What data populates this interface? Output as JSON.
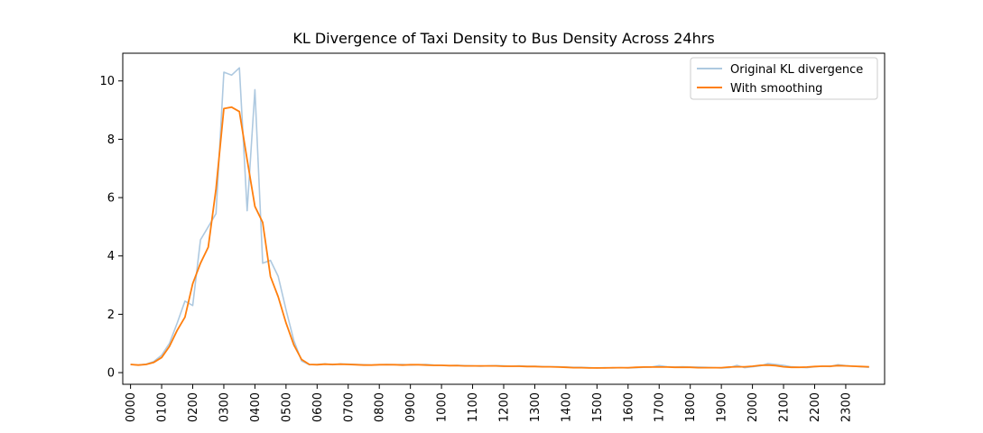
{
  "chart_data": {
    "type": "line",
    "title": "KL Divergence of Taxi Density to Bus Density Across 24hrs",
    "xlabel": "",
    "ylabel": "",
    "x_unit": "hour",
    "xlim": [
      -0.25,
      24.25
    ],
    "ylim": [
      -0.4,
      10.95
    ],
    "x_ticks": [
      0,
      1,
      2,
      3,
      4,
      5,
      6,
      7,
      8,
      9,
      10,
      11,
      12,
      13,
      14,
      15,
      16,
      17,
      18,
      19,
      20,
      21,
      22,
      23
    ],
    "x_tick_labels": [
      "0000",
      "0100",
      "0200",
      "0300",
      "0400",
      "0500",
      "0600",
      "0700",
      "0800",
      "0900",
      "1000",
      "1100",
      "1200",
      "1300",
      "1400",
      "1500",
      "1600",
      "1700",
      "1800",
      "1900",
      "2000",
      "2100",
      "2200",
      "2300"
    ],
    "y_ticks": [
      0,
      2,
      4,
      6,
      8,
      10
    ],
    "y_tick_labels": [
      "0",
      "2",
      "4",
      "6",
      "8",
      "10"
    ],
    "grid": false,
    "legend_position": "top-right",
    "x": [
      0,
      0.25,
      0.5,
      0.75,
      1,
      1.25,
      1.5,
      1.75,
      2,
      2.25,
      2.5,
      2.75,
      3,
      3.25,
      3.5,
      3.75,
      4,
      4.25,
      4.5,
      4.75,
      5,
      5.25,
      5.5,
      5.75,
      6,
      6.25,
      6.5,
      6.75,
      7,
      7.25,
      7.5,
      7.75,
      8,
      8.25,
      8.5,
      8.75,
      9,
      9.25,
      9.5,
      9.75,
      10,
      10.25,
      10.5,
      10.75,
      11,
      11.25,
      11.5,
      11.75,
      12,
      12.25,
      12.5,
      12.75,
      13,
      13.25,
      13.5,
      13.75,
      14,
      14.25,
      14.5,
      14.75,
      15,
      15.25,
      15.5,
      15.75,
      16,
      16.25,
      16.5,
      16.75,
      17,
      17.25,
      17.5,
      17.75,
      18,
      18.25,
      18.5,
      18.75,
      19,
      19.25,
      19.5,
      19.75,
      20,
      20.25,
      20.5,
      20.75,
      21,
      21.25,
      21.5,
      21.75,
      22,
      22.25,
      22.5,
      22.75,
      23,
      23.25,
      23.5,
      23.75
    ],
    "series": [
      {
        "name": "Original KL divergence",
        "color": "#aec9e0",
        "values": [
          0.28,
          0.26,
          0.29,
          0.38,
          0.6,
          1.0,
          1.7,
          2.45,
          2.3,
          4.55,
          5.0,
          5.45,
          10.3,
          10.2,
          10.45,
          5.55,
          9.7,
          3.75,
          3.85,
          3.3,
          2.15,
          1.1,
          0.4,
          0.27,
          0.28,
          0.3,
          0.27,
          0.3,
          0.29,
          0.28,
          0.27,
          0.26,
          0.27,
          0.28,
          0.27,
          0.28,
          0.26,
          0.27,
          0.28,
          0.26,
          0.25,
          0.24,
          0.25,
          0.24,
          0.23,
          0.22,
          0.23,
          0.24,
          0.23,
          0.22,
          0.23,
          0.22,
          0.22,
          0.21,
          0.2,
          0.2,
          0.19,
          0.18,
          0.18,
          0.17,
          0.16,
          0.17,
          0.16,
          0.17,
          0.16,
          0.17,
          0.18,
          0.19,
          0.24,
          0.2,
          0.19,
          0.2,
          0.19,
          0.19,
          0.18,
          0.17,
          0.16,
          0.17,
          0.25,
          0.17,
          0.2,
          0.23,
          0.31,
          0.28,
          0.25,
          0.2,
          0.18,
          0.17,
          0.2,
          0.22,
          0.21,
          0.27,
          0.24,
          0.22,
          0.2,
          0.18
        ]
      },
      {
        "name": "With smoothing",
        "color": "#ff7f0e",
        "values": [
          0.28,
          0.26,
          0.28,
          0.35,
          0.52,
          0.9,
          1.45,
          1.9,
          3.05,
          3.75,
          4.3,
          6.3,
          9.05,
          9.1,
          8.95,
          7.3,
          5.7,
          5.15,
          3.3,
          2.6,
          1.7,
          0.95,
          0.45,
          0.28,
          0.27,
          0.29,
          0.28,
          0.29,
          0.28,
          0.27,
          0.26,
          0.26,
          0.27,
          0.27,
          0.27,
          0.26,
          0.27,
          0.27,
          0.26,
          0.25,
          0.25,
          0.24,
          0.24,
          0.23,
          0.23,
          0.23,
          0.23,
          0.23,
          0.22,
          0.22,
          0.22,
          0.21,
          0.21,
          0.2,
          0.2,
          0.19,
          0.18,
          0.17,
          0.17,
          0.16,
          0.16,
          0.16,
          0.17,
          0.17,
          0.17,
          0.18,
          0.19,
          0.19,
          0.19,
          0.19,
          0.18,
          0.18,
          0.18,
          0.17,
          0.17,
          0.17,
          0.17,
          0.19,
          0.2,
          0.2,
          0.22,
          0.25,
          0.26,
          0.24,
          0.2,
          0.18,
          0.18,
          0.19,
          0.21,
          0.22,
          0.22,
          0.24,
          0.23,
          0.22,
          0.21,
          0.2
        ]
      }
    ]
  }
}
